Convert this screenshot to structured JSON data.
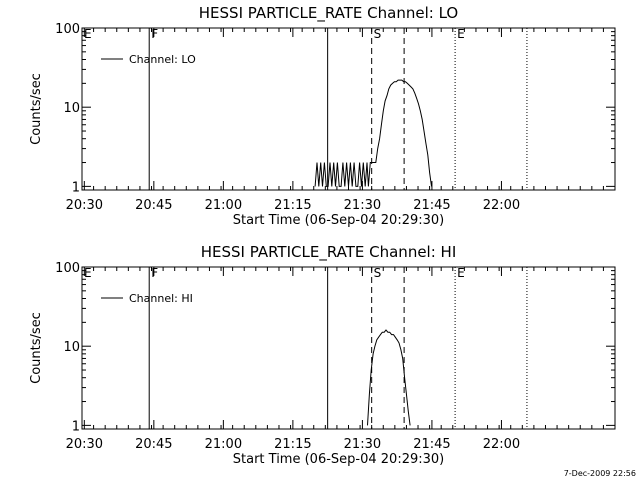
{
  "chart_data": [
    {
      "type": "line",
      "title": "HESSI PARTICLE_RATE Channel: LO",
      "xlabel": "Start Time (06-Sep-04 20:29:30)",
      "ylabel": "Counts/sec",
      "yscale": "log",
      "xlim": [
        0,
        115
      ],
      "ylim": [
        0.9,
        100
      ],
      "xtick_positions": [
        0.5,
        15.5,
        30.5,
        45.5,
        60.5,
        75.5,
        90.5
      ],
      "xtick_labels": [
        "20:30",
        "20:45",
        "21:00",
        "21:15",
        "21:30",
        "21:45",
        "22:00"
      ],
      "ytick_values": [
        1,
        10,
        100
      ],
      "ytick_labels": [
        "1",
        "10",
        "100"
      ],
      "legend": [
        "Channel: LO"
      ],
      "legend_position": "top-left",
      "markers": [
        {
          "t": 0,
          "label": "E",
          "style": "none"
        },
        {
          "t": 14.5,
          "label": "F",
          "style": "solid"
        },
        {
          "t": 53,
          "label": "",
          "style": "solid"
        },
        {
          "t": 62.5,
          "label": "S",
          "style": "dashed"
        },
        {
          "t": 69.5,
          "label": "",
          "style": "dashed"
        },
        {
          "t": 80.5,
          "label": "E",
          "style": "dotted"
        },
        {
          "t": 96,
          "label": "",
          "style": "dotted"
        }
      ],
      "series": [
        {
          "name": "Channel: LO",
          "x": [
            50.3,
            50.7,
            51.1,
            51.5,
            51.9,
            52.3,
            52.7,
            53.1,
            53.5,
            53.9,
            54.3,
            54.7,
            55.1,
            55.5,
            55.9,
            56.3,
            56.7,
            57.1,
            57.5,
            57.9,
            58.3,
            58.7,
            59.1,
            59.5,
            59.9,
            60.3,
            60.7,
            61.1,
            61.5,
            61.8,
            62.2,
            62.6,
            63.0,
            63.4,
            63.8,
            64.2,
            64.6,
            65.0,
            65.4,
            65.8,
            66.2,
            66.6,
            67.0,
            67.4,
            67.8,
            68.2,
            68.6,
            69.0,
            69.4,
            69.8,
            70.2,
            70.6,
            71.0,
            71.4,
            71.8,
            72.2,
            72.6,
            73.0,
            73.4,
            73.8,
            74.2,
            74.6,
            75.0,
            75.4
          ],
          "y": [
            1,
            2,
            1,
            2,
            1,
            2,
            1,
            1,
            2,
            1,
            2,
            1,
            2,
            1,
            1,
            2,
            1,
            2,
            1,
            2,
            1,
            2,
            1,
            1,
            2,
            1,
            2,
            1,
            2,
            1,
            2,
            2,
            2,
            2,
            3,
            4,
            6,
            9,
            12,
            14,
            17,
            19,
            20,
            21,
            21,
            22,
            22,
            22,
            21,
            21,
            20,
            19,
            18,
            17,
            15,
            13,
            11,
            9,
            7,
            5,
            3.5,
            2.5,
            1.5,
            1
          ]
        }
      ]
    },
    {
      "type": "line",
      "title": "HESSI PARTICLE_RATE Channel: HI",
      "xlabel": "Start Time (06-Sep-04 20:29:30)",
      "ylabel": "Counts/sec",
      "yscale": "log",
      "xlim": [
        0,
        115
      ],
      "ylim": [
        0.9,
        100
      ],
      "xtick_positions": [
        0.5,
        15.5,
        30.5,
        45.5,
        60.5,
        75.5,
        90.5
      ],
      "xtick_labels": [
        "20:30",
        "20:45",
        "21:00",
        "21:15",
        "21:30",
        "21:45",
        "22:00"
      ],
      "ytick_values": [
        1,
        10,
        100
      ],
      "ytick_labels": [
        "1",
        "10",
        "100"
      ],
      "legend": [
        "Channel: HI"
      ],
      "legend_position": "top-left",
      "markers": [
        {
          "t": 0,
          "label": "E",
          "style": "none"
        },
        {
          "t": 14.5,
          "label": "F",
          "style": "solid"
        },
        {
          "t": 53,
          "label": "",
          "style": "solid"
        },
        {
          "t": 62.5,
          "label": "S",
          "style": "dashed"
        },
        {
          "t": 69.5,
          "label": "",
          "style": "dashed"
        },
        {
          "t": 80.5,
          "label": "E",
          "style": "dotted"
        },
        {
          "t": 96,
          "label": "",
          "style": "dotted"
        }
      ],
      "series": [
        {
          "name": "Channel: HI",
          "x": [
            61.6,
            62.0,
            62.4,
            62.8,
            63.2,
            63.6,
            64.0,
            64.4,
            64.8,
            65.2,
            65.6,
            66.0,
            66.4,
            66.8,
            67.2,
            67.6,
            68.0,
            68.4,
            68.8,
            69.2,
            69.6,
            70.0,
            70.4,
            70.8
          ],
          "y": [
            1,
            2.5,
            5,
            8,
            10,
            12,
            13,
            14,
            15,
            15,
            16,
            15,
            15,
            14,
            14,
            13,
            12,
            11,
            9,
            7,
            4,
            2.5,
            1.5,
            1
          ]
        }
      ]
    }
  ],
  "timestamp": "7-Dec-2009 22:56"
}
